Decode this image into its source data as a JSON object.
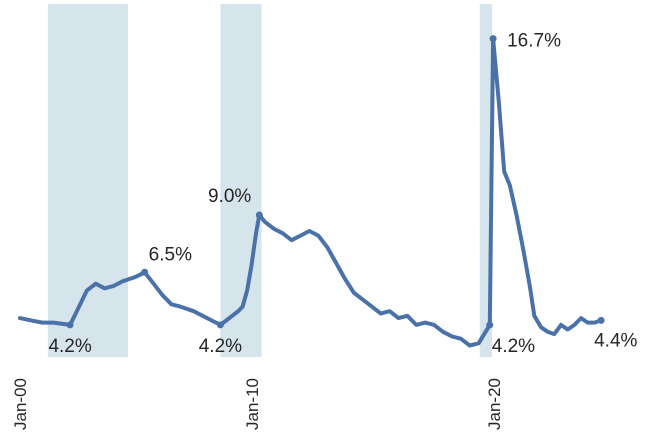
{
  "chart_data": {
    "type": "line",
    "title": "",
    "xlabel": "",
    "ylabel": "",
    "series_color": "#4a72a8",
    "recession_color": "#d6e4ec",
    "x_ticks": [
      "Jan-00",
      "Jan-10",
      "Jan-20"
    ],
    "recessions": [
      {
        "start": 2000.25,
        "end": 2003.85
      },
      {
        "start": 2008.0,
        "end": 2009.85
      },
      {
        "start": 2019.65,
        "end": 2020.2
      }
    ],
    "annotations": [
      {
        "x": 2001.25,
        "y": 4.2,
        "label": "4.2%"
      },
      {
        "x": 2004.6,
        "y": 6.5,
        "label": "6.5%"
      },
      {
        "x": 2009.75,
        "y": 9.0,
        "label": "9.0%"
      },
      {
        "x": 2008.0,
        "y": 4.2,
        "label": "4.2%"
      },
      {
        "x": 2020.25,
        "y": 16.7,
        "label": "16.7%"
      },
      {
        "x": 2020.1,
        "y": 4.2,
        "label": "4.2%"
      },
      {
        "x": 2025.1,
        "y": 4.4,
        "label": "4.4%"
      }
    ],
    "series": [
      {
        "x": [
          1999.0,
          1999.5,
          2000.0,
          2000.5,
          2001.25,
          2001.5,
          2002.0,
          2002.4,
          2002.8,
          2003.2,
          2003.6,
          2004.2,
          2004.6,
          2005.0,
          2005.4,
          2005.8,
          2006.2,
          2006.8,
          2007.2,
          2007.6,
          2008.0,
          2008.4,
          2008.8,
          2009.0,
          2009.2,
          2009.4,
          2009.6,
          2009.75,
          2010.0,
          2010.4,
          2010.8,
          2011.2,
          2011.6,
          2012.0,
          2012.4,
          2012.8,
          2013.2,
          2013.6,
          2014.0,
          2014.4,
          2014.8,
          2015.2,
          2015.6,
          2016.0,
          2016.4,
          2016.8,
          2017.2,
          2017.6,
          2018.0,
          2018.4,
          2018.8,
          2019.2,
          2019.6,
          2020.1,
          2020.25,
          2020.5,
          2020.75,
          2021.0,
          2021.3,
          2021.6,
          2021.9,
          2022.1,
          2022.4,
          2022.7,
          2023.0,
          2023.3,
          2023.6,
          2023.9,
          2024.2,
          2024.5,
          2024.8,
          2025.1
        ],
        "y": [
          4.5,
          4.4,
          4.3,
          4.3,
          4.2,
          4.7,
          5.7,
          6.0,
          5.8,
          5.9,
          6.1,
          6.3,
          6.5,
          6.0,
          5.5,
          5.1,
          5.0,
          4.8,
          4.6,
          4.4,
          4.2,
          4.5,
          4.8,
          5.0,
          5.7,
          6.8,
          8.2,
          9.0,
          8.7,
          8.4,
          8.2,
          7.9,
          8.1,
          8.3,
          8.1,
          7.6,
          6.9,
          6.2,
          5.6,
          5.3,
          5.0,
          4.7,
          4.8,
          4.5,
          4.6,
          4.2,
          4.3,
          4.2,
          3.9,
          3.7,
          3.6,
          3.3,
          3.4,
          4.2,
          16.7,
          14.0,
          10.9,
          10.3,
          9.0,
          7.5,
          5.9,
          4.6,
          4.1,
          3.9,
          3.8,
          4.2,
          4.0,
          4.2,
          4.5,
          4.3,
          4.3,
          4.4
        ]
      }
    ],
    "x_range": [
      1999.0,
      2025.5
    ],
    "y_range": [
      2.8,
      17.6
    ],
    "grid": false,
    "legend": "none"
  }
}
